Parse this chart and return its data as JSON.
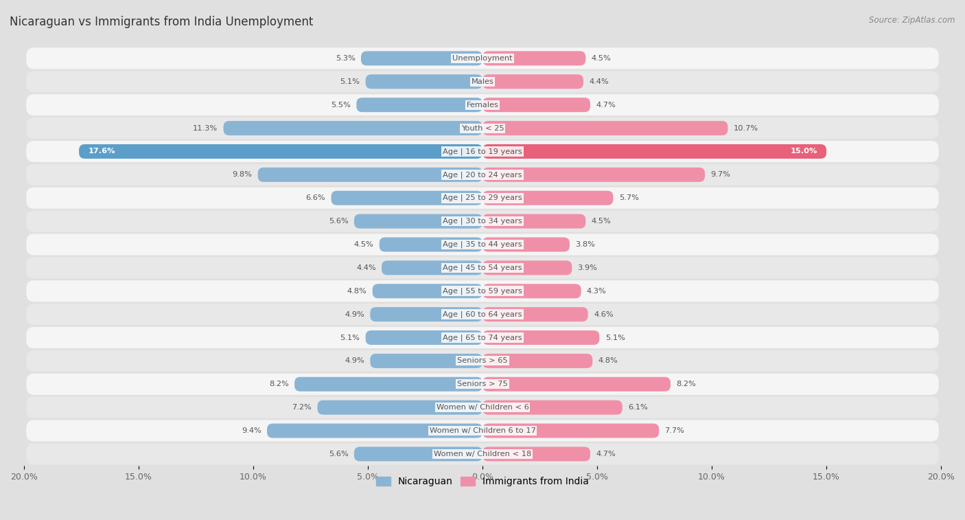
{
  "title": "Nicaraguan vs Immigrants from India Unemployment",
  "source": "Source: ZipAtlas.com",
  "categories": [
    "Unemployment",
    "Males",
    "Females",
    "Youth < 25",
    "Age | 16 to 19 years",
    "Age | 20 to 24 years",
    "Age | 25 to 29 years",
    "Age | 30 to 34 years",
    "Age | 35 to 44 years",
    "Age | 45 to 54 years",
    "Age | 55 to 59 years",
    "Age | 60 to 64 years",
    "Age | 65 to 74 years",
    "Seniors > 65",
    "Seniors > 75",
    "Women w/ Children < 6",
    "Women w/ Children 6 to 17",
    "Women w/ Children < 18"
  ],
  "nicaraguan": [
    5.3,
    5.1,
    5.5,
    11.3,
    17.6,
    9.8,
    6.6,
    5.6,
    4.5,
    4.4,
    4.8,
    4.9,
    5.1,
    4.9,
    8.2,
    7.2,
    9.4,
    5.6
  ],
  "india": [
    4.5,
    4.4,
    4.7,
    10.7,
    15.0,
    9.7,
    5.7,
    4.5,
    3.8,
    3.9,
    4.3,
    4.6,
    5.1,
    4.8,
    8.2,
    6.1,
    7.7,
    4.7
  ],
  "nicaraguan_color": "#8ab4d4",
  "india_color": "#f090a8",
  "highlight_nicaraguan_color": "#5b9ec9",
  "highlight_india_color": "#e8607a",
  "row_bg_light": "#f5f5f5",
  "row_bg_dark": "#e8e8e8",
  "outer_bg": "#e0e0e0",
  "max_val": 20.0,
  "legend_nicaraguan": "Nicaraguan",
  "legend_india": "Immigrants from India",
  "label_color": "#555555",
  "value_color_normal": "#555555",
  "value_color_highlight_nic": "#ffffff",
  "value_color_highlight_ind": "#ffffff"
}
